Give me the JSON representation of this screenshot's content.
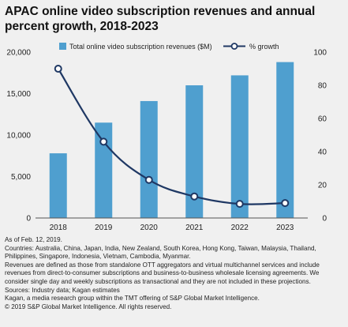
{
  "title": "APAC online video subscription revenues and annual percent growth, 2018-2023",
  "chart_data": {
    "type": "bar",
    "categories": [
      "2018",
      "2019",
      "2020",
      "2021",
      "2022",
      "2023"
    ],
    "series": [
      {
        "name": "Total online video subscription revenues ($M)",
        "type": "bar",
        "axis": "left",
        "color": "#4f9fcf",
        "values": [
          7800,
          11500,
          14100,
          16000,
          17200,
          18800
        ]
      },
      {
        "name": "% growth",
        "type": "line",
        "axis": "right",
        "color": "#1f3864",
        "values": [
          90,
          46,
          23,
          13,
          8.5,
          9
        ]
      }
    ],
    "ylim": [
      0,
      20000
    ],
    "y_ticks": [
      "0",
      "5,000",
      "10,000",
      "15,000",
      "20,000"
    ],
    "y2lim": [
      0,
      100
    ],
    "y2_ticks": [
      "0",
      "20",
      "40",
      "60",
      "80",
      "100"
    ],
    "grid": false,
    "legend_position": "top"
  },
  "notes": [
    "As of Feb. 12, 2019.",
    "Countries: Australia, China, Japan, India, New Zealand, South Korea, Hong Kong, Taiwan, Malaysia, Thailand, Philippines, Singapore, Indonesia, Vietnam, Cambodia, Myanmar.",
    "Revenues are defined as those from standalone OTT aggregators and virtual multichannel services and include revenues from direct-to-consumer subscriptions and business-to-business wholesale licensing agreements. We consider single day and weekly subscriptions as transactional and they are not included in these projections.",
    "Sources: Industry data; Kagan estimates",
    "Kagan, a media research group within the TMT offering of S&P Global Market Intelligence.",
    "© 2019 S&P Global Market Intelligence. All rights reserved."
  ]
}
